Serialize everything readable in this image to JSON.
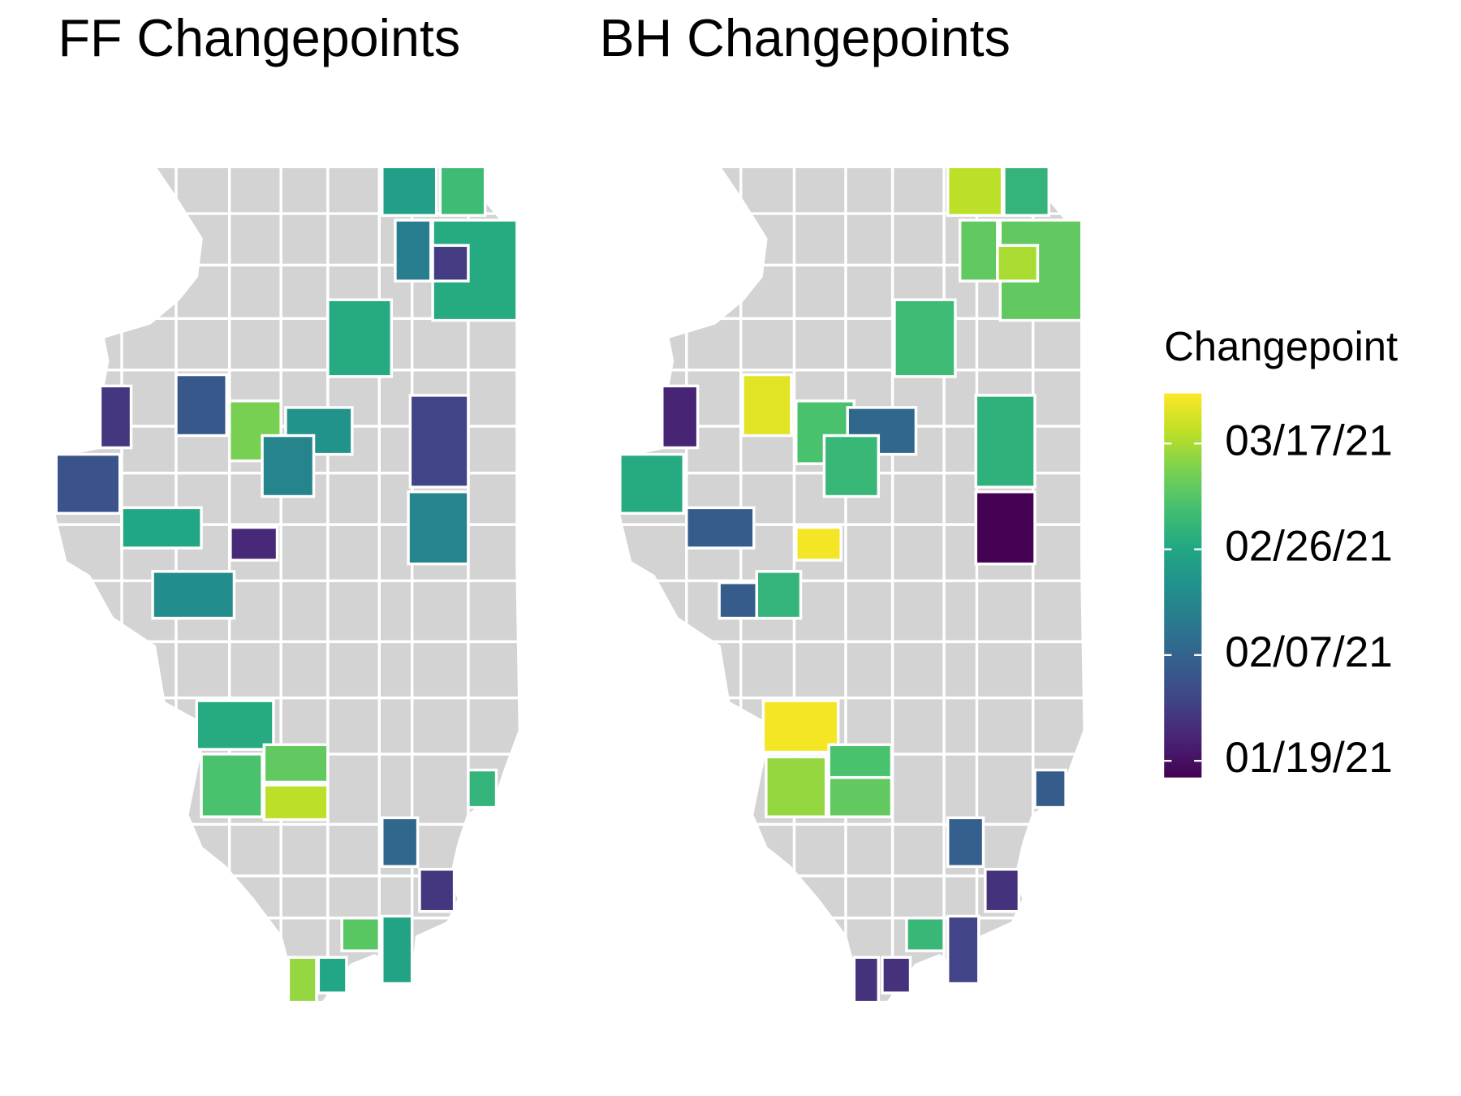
{
  "maps": [
    {
      "title": "FF Changepoints",
      "values": [
        "2021-02-24",
        "2021-03-04",
        "2021-02-27",
        "2021-02-14",
        "2021-01-28",
        "2021-02-27",
        "2021-02-04",
        "2021-01-27",
        "2021-03-12",
        "2021-02-20",
        "2021-02-16",
        "2021-01-30",
        "2021-02-03",
        "2021-02-26",
        "2021-01-24",
        "2021-02-16",
        "2021-02-18",
        "2021-02-27",
        "2021-03-06",
        "2021-03-09",
        "2021-03-19",
        "2021-03-02",
        "2021-02-08",
        "2021-01-27",
        "2021-03-08",
        "2021-02-25",
        "2021-03-15",
        "2021-02-26"
      ]
    },
    {
      "title": "BH Changepoints",
      "values": [
        "2021-03-19",
        "2021-03-02",
        "2021-03-09",
        "2021-03-09",
        "2021-03-17",
        "2021-03-04",
        "2021-03-23",
        "2021-01-23",
        "2021-03-06",
        "2021-02-08",
        "2021-03-03",
        "2021-03-01",
        "2021-02-27",
        "2021-02-05",
        "2021-03-25",
        "2021-01-16",
        "2021-02-05",
        "2021-03-02",
        "2021-03-25",
        "2021-03-15",
        "2021-03-06",
        "2021-03-09",
        "2021-02-05",
        "2021-02-06",
        "2021-01-26",
        "2021-03-03",
        "2021-01-30",
        "2021-01-26",
        "2021-01-26"
      ]
    }
  ],
  "legend": {
    "title": "Changepoint",
    "colorscale": "viridis",
    "lim": [
      "2021-01-16",
      "2021-03-26"
    ],
    "ticks": [
      {
        "value": "2021-03-17",
        "label": "03/17/21"
      },
      {
        "value": "2021-02-26",
        "label": "02/26/21"
      },
      {
        "value": "2021-02-07",
        "label": "02/07/21"
      },
      {
        "value": "2021-01-19",
        "label": "01/19/21"
      }
    ]
  }
}
